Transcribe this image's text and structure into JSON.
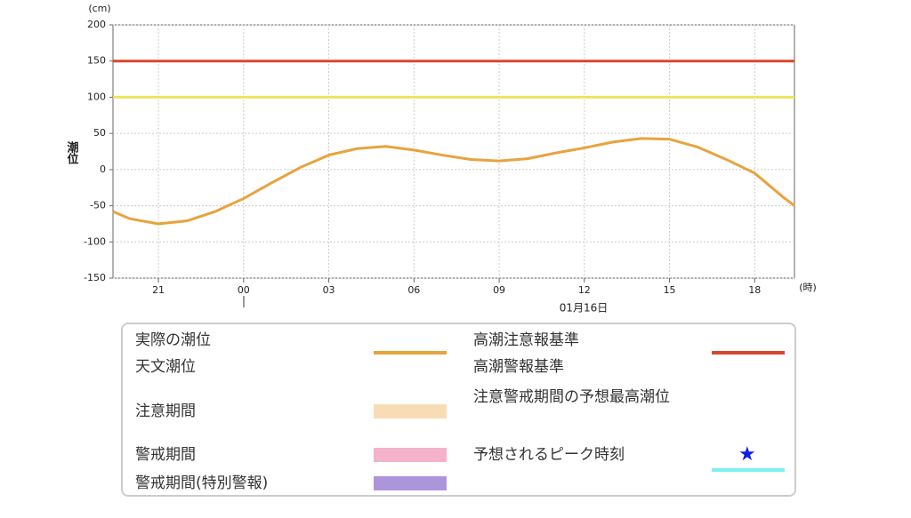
{
  "chart_data": {
    "type": "line",
    "y_label": "潮位",
    "y_unit": "(cm)",
    "x_unit": "(時)",
    "date_label": "01月16日",
    "xlim": [
      19.4,
      43.4
    ],
    "ylim": [
      -150,
      200
    ],
    "yticks": [
      -150,
      -100,
      -50,
      0,
      50,
      100,
      150,
      200
    ],
    "xticks": [
      {
        "value": 21,
        "label": "21"
      },
      {
        "value": 24,
        "label": "00"
      },
      {
        "value": 27,
        "label": "03"
      },
      {
        "value": 30,
        "label": "06"
      },
      {
        "value": 33,
        "label": "09"
      },
      {
        "value": 36,
        "label": "12"
      },
      {
        "value": 39,
        "label": "15"
      },
      {
        "value": 42,
        "label": "18"
      }
    ],
    "grid": true,
    "x": [
      19.4,
      20,
      21,
      22,
      23,
      24,
      25,
      26,
      27,
      28,
      29,
      30,
      31,
      32,
      33,
      34,
      35,
      36,
      37,
      38,
      39,
      40,
      41,
      42,
      43,
      43.4
    ],
    "series": [
      {
        "color": "#e8a33d",
        "values": [
          -58,
          -68,
          -75,
          -71,
          -58,
          -40,
          -18,
          3,
          20,
          29,
          32,
          27,
          20,
          14,
          12,
          15,
          23,
          30,
          38,
          43,
          42,
          31,
          14,
          -5,
          -38,
          -50
        ]
      }
    ],
    "reference_lines": [
      {
        "value": 100,
        "color": "#ece65c"
      },
      {
        "value": 150,
        "color": "#d9472e"
      }
    ],
    "legend": [
      {
        "name": "実際の潮位",
        "color": "#2a1a8c",
        "style": "line"
      },
      {
        "name": "天文潮位",
        "color": "#e8a33d",
        "style": "line"
      },
      {
        "name": "注意期間",
        "color": "#f8dcb4",
        "style": "band"
      },
      {
        "name": "警戒期間",
        "color": "#f4b3cb",
        "style": "band"
      },
      {
        "name": "警戒期間(特別警報)",
        "color": "#ad95dc",
        "style": "band"
      },
      {
        "name": "高潮注意報基準",
        "color": "#ece65c",
        "style": "line"
      },
      {
        "name": "高潮警報基準",
        "color": "#d9472e",
        "style": "line"
      },
      {
        "name": "注意警戒期間の予想最高潮位",
        "color": "#7ff0f0",
        "style": "line"
      },
      {
        "name": "予想されるピーク時刻",
        "color": "#1020e0",
        "style": "star"
      }
    ]
  }
}
